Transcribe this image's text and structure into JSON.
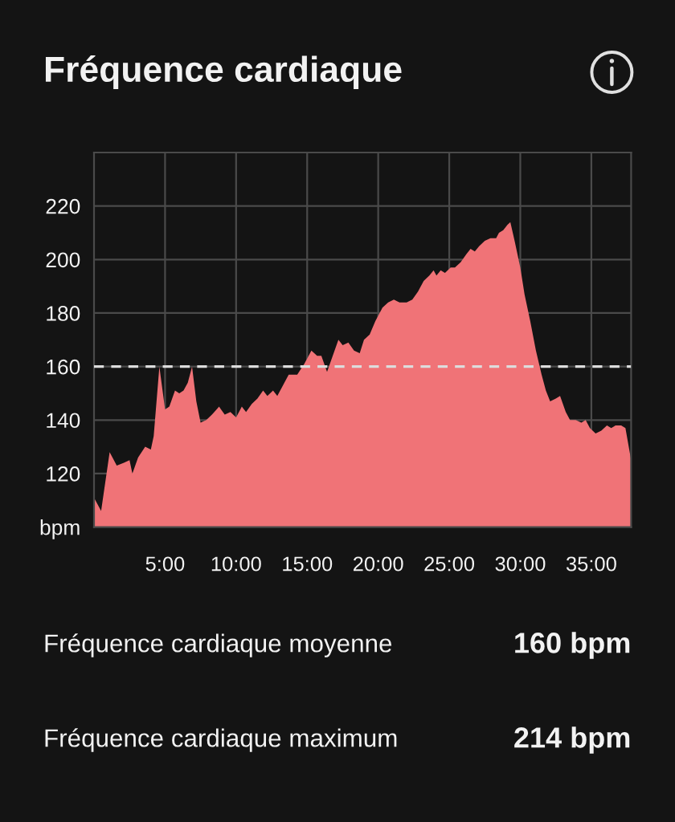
{
  "chart_data": {
    "type": "area",
    "title": "Fréquence cardiaque",
    "x": [
      0,
      0.5,
      1.1,
      1.6,
      2.1,
      2.5,
      2.7,
      3.1,
      3.6,
      4.0,
      4.2,
      4.6,
      5.0,
      5.3,
      5.7,
      6.0,
      6.3,
      6.6,
      6.9,
      7.2,
      7.5,
      7.9,
      8.3,
      8.8,
      9.2,
      9.6,
      10.0,
      10.4,
      10.7,
      11.1,
      11.5,
      11.9,
      12.2,
      12.6,
      12.9,
      13.3,
      13.7,
      14.3,
      14.8,
      15.3,
      15.7,
      16.0,
      16.4,
      16.8,
      17.2,
      17.5,
      17.9,
      18.3,
      18.7,
      19.0,
      19.4,
      19.8,
      20.3,
      20.7,
      21.1,
      21.5,
      22.0,
      22.4,
      22.8,
      23.2,
      23.6,
      23.9,
      24.1,
      24.4,
      24.7,
      25.1,
      25.4,
      25.8,
      26.2,
      26.5,
      26.8,
      27.1,
      27.5,
      27.9,
      28.3,
      28.5,
      28.8,
      29.1,
      29.3,
      29.6,
      30.0,
      30.3,
      30.7,
      31.1,
      31.5,
      31.8,
      32.1,
      32.5,
      32.8,
      33.2,
      33.5,
      33.9,
      34.3,
      34.6,
      34.9,
      35.3,
      35.7,
      36.1,
      36.4,
      36.7,
      37.1,
      37.4,
      37.8
    ],
    "series": [
      {
        "color": "#f07377",
        "values": [
          111,
          106,
          128,
          123,
          124,
          125,
          120,
          126,
          130,
          129,
          134,
          160,
          144,
          145,
          151,
          150,
          151,
          154,
          160,
          147,
          139,
          140,
          142,
          145,
          142,
          143,
          141,
          145,
          143,
          146,
          148,
          151,
          149,
          151,
          149,
          153,
          157,
          157,
          161,
          166,
          164,
          164,
          158,
          164,
          170,
          168,
          169,
          166,
          165,
          170,
          172,
          177,
          182,
          184,
          185,
          184,
          184,
          185,
          188,
          192,
          194,
          196,
          194,
          196,
          195,
          197,
          197,
          199,
          202,
          204,
          203,
          205,
          207,
          208,
          208,
          210,
          211,
          213,
          214,
          207,
          197,
          187,
          177,
          166,
          157,
          151,
          147,
          148,
          149,
          143,
          140,
          140,
          139,
          140,
          137,
          135,
          136,
          138,
          137,
          138,
          138,
          137,
          125
        ]
      }
    ],
    "xlim": [
      0,
      37.8
    ],
    "xticks": [
      {
        "value": 5,
        "label": "5:00"
      },
      {
        "value": 10,
        "label": "10:00"
      },
      {
        "value": 15,
        "label": "15:00"
      },
      {
        "value": 20,
        "label": "20:00"
      },
      {
        "value": 25,
        "label": "25:00"
      },
      {
        "value": 30,
        "label": "30:00"
      },
      {
        "value": 35,
        "label": "35:00"
      }
    ],
    "ylim": [
      100,
      240
    ],
    "yticks": [
      {
        "value": 100,
        "label": "bpm"
      },
      120,
      140,
      160,
      180,
      200,
      220
    ],
    "grid": true,
    "ref_lines": [
      {
        "axis": "y",
        "value": 160,
        "color": "#dcdcdc",
        "line_style": "dashed"
      }
    ],
    "annotations": [
      "Fréquence cardiaque moyenne",
      "160 bpm",
      "Fréquence cardiaque maximum",
      "214 bpm"
    ]
  }
}
